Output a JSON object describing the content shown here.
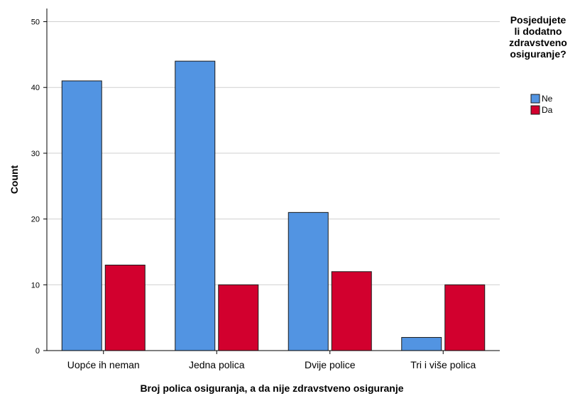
{
  "chart_data": {
    "type": "bar",
    "categories": [
      "Uopće ih neman",
      "Jedna polica",
      "Dvije police",
      "Tri i više polica"
    ],
    "series": [
      {
        "name": "Ne",
        "values": [
          41,
          44,
          21,
          2
        ],
        "color": "#5294E2"
      },
      {
        "name": "Da",
        "values": [
          13,
          10,
          12,
          10
        ],
        "color": "#D2002E"
      }
    ],
    "xlabel": "Broj polica osiguranja, a da nije zdravstveno osiguranje",
    "ylabel": "Count",
    "ylim": [
      0,
      52
    ],
    "yticks": [
      0,
      10,
      20,
      30,
      40,
      50
    ],
    "grid": true,
    "legend": {
      "title_lines": [
        "Posjedujete",
        "li dodatno",
        "zdravstveno",
        "osiguranje?"
      ],
      "placement": "top-right"
    }
  }
}
